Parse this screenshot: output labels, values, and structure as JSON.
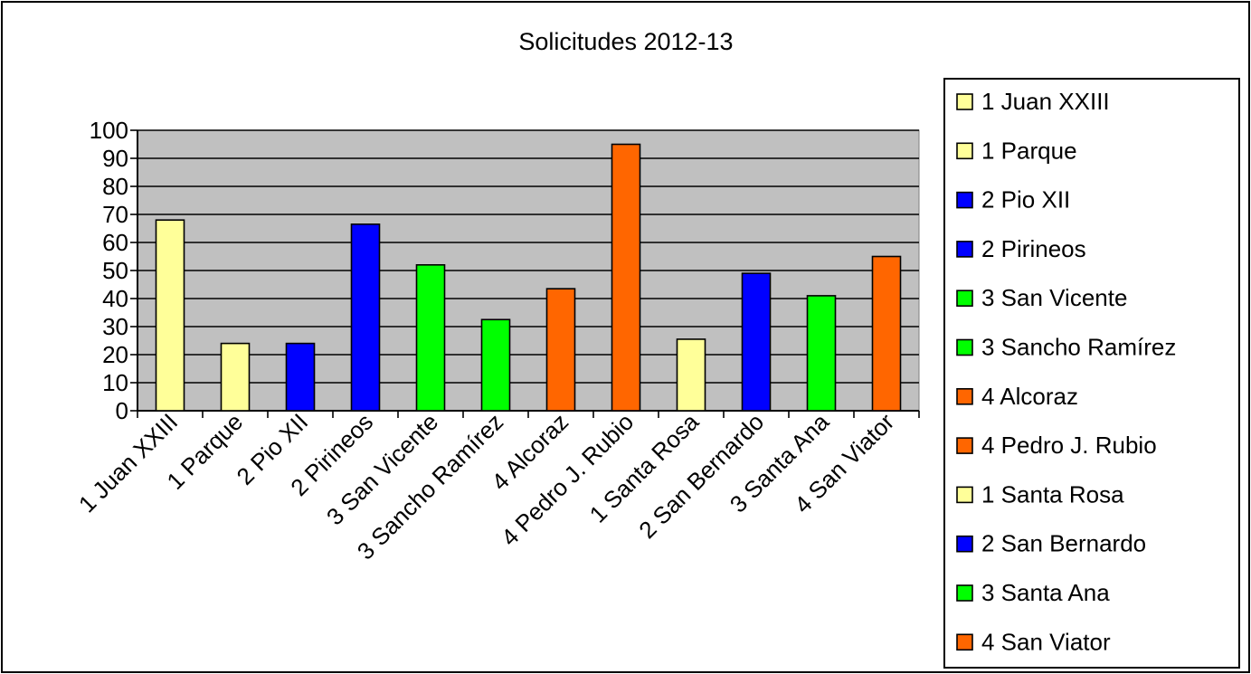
{
  "chart_data": {
    "type": "bar",
    "title": "Solicitudes 2012-13",
    "xlabel": "",
    "ylabel": "",
    "ylim": [
      0,
      100
    ],
    "yticks": [
      "0",
      "10",
      "20",
      "30",
      "40",
      "50",
      "60",
      "70",
      "80",
      "90",
      "100"
    ],
    "grid": true,
    "legend_position": "right",
    "plot_background": "#c0c0c0",
    "categories": [
      "1 Juan XXIII",
      "1 Parque",
      "2 Pio XII",
      "2 Pirineos",
      "3 San Vicente",
      "3 Sancho Ramírez",
      "4 Alcoraz",
      "4 Pedro J. Rubio",
      "1 Santa Rosa",
      "2 San Bernardo",
      "3 Santa Ana",
      "4 San Viator"
    ],
    "values": [
      68,
      24,
      24,
      66.5,
      52,
      32.5,
      43.5,
      95,
      25.5,
      49,
      41,
      55
    ],
    "colors": [
      "#ffff99",
      "#ffff99",
      "#0000ff",
      "#0000ff",
      "#00ff00",
      "#00ff00",
      "#ff6600",
      "#ff6600",
      "#ffff99",
      "#0000ff",
      "#00ff00",
      "#ff6600"
    ],
    "legend": [
      "1 Juan XXIII",
      "1 Parque",
      "2 Pio XII",
      "2 Pirineos",
      "3 San Vicente",
      "3 Sancho Ramírez",
      "4 Alcoraz",
      "4 Pedro J. Rubio",
      "1 Santa Rosa",
      "2 San Bernardo",
      "3 Santa Ana",
      "4 San Viator"
    ]
  }
}
